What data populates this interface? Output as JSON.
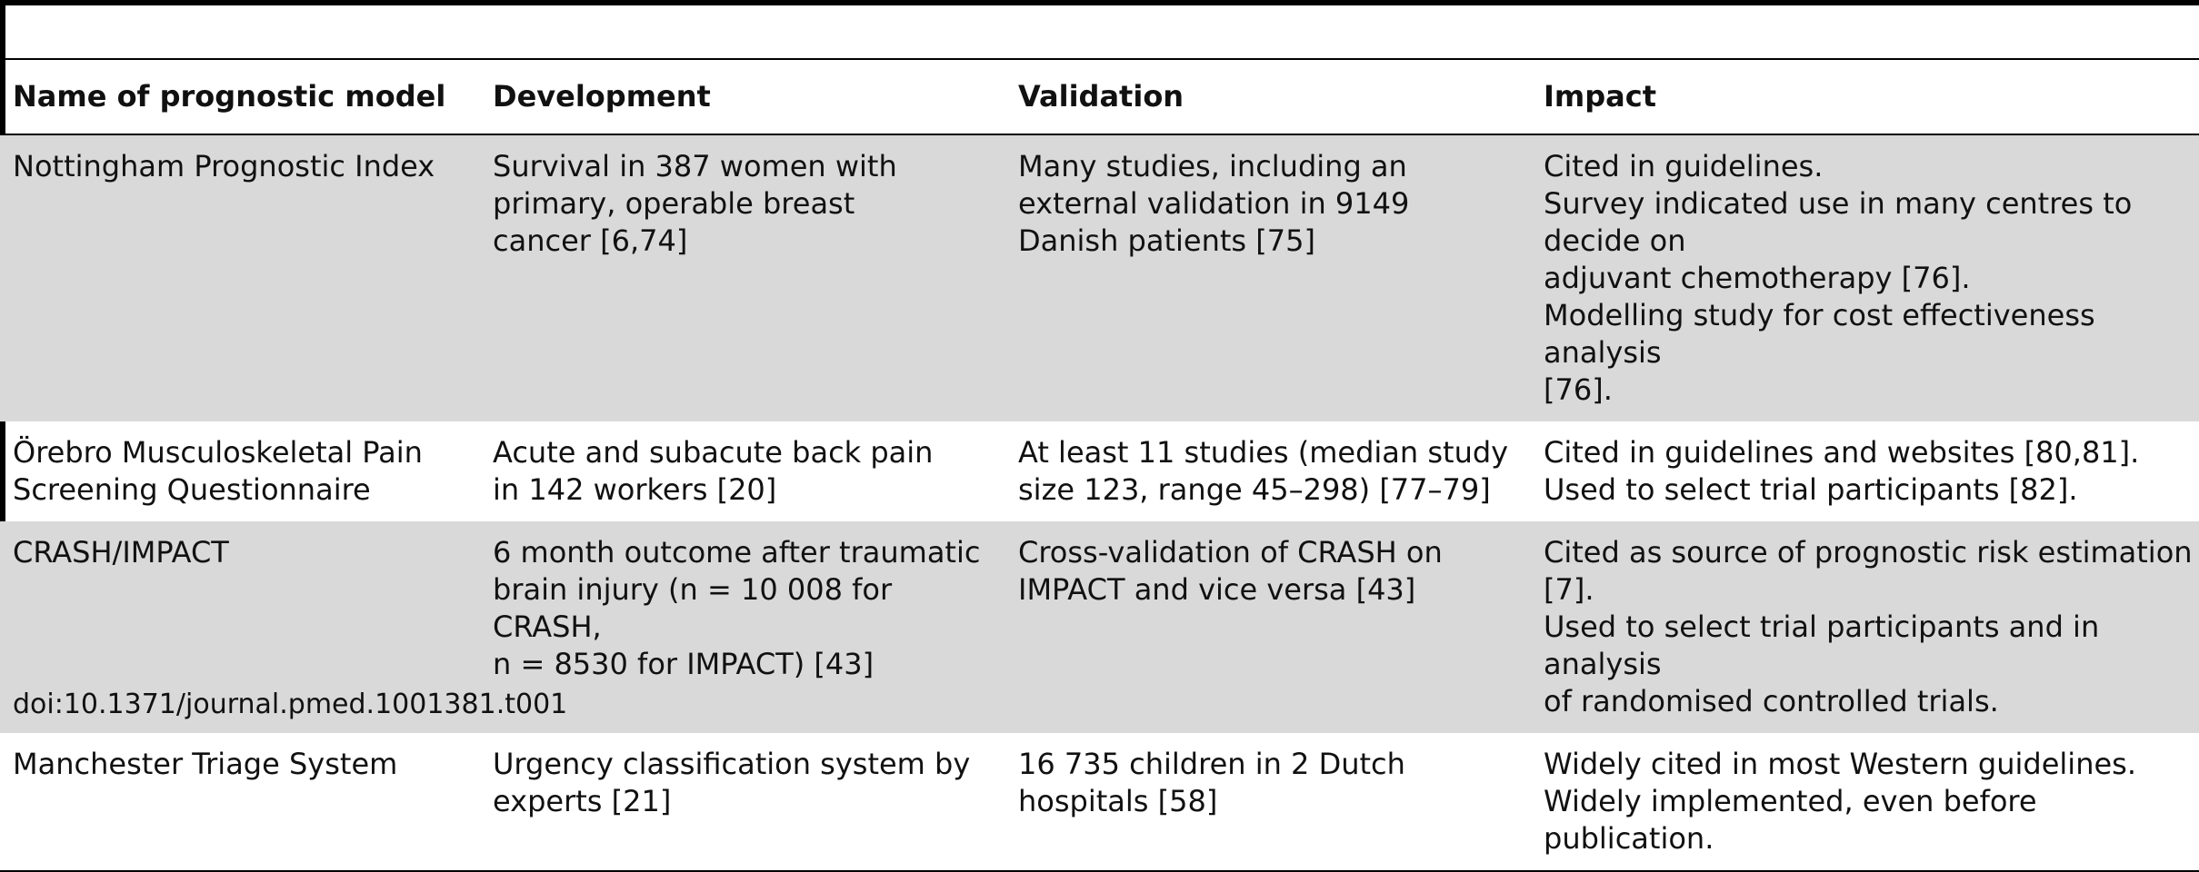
{
  "table": {
    "headers": [
      "Name of prognostic model",
      "Development",
      "Validation",
      "Impact"
    ],
    "rows": [
      {
        "shaded": true,
        "name": [
          "Nottingham Prognostic Index"
        ],
        "development": [
          "Survival in 387 women with",
          "primary, operable breast",
          "cancer [6,74]"
        ],
        "validation": [
          "Many studies, including an",
          "external validation in 9149",
          "Danish patients [75]"
        ],
        "impact": [
          "Cited in guidelines.",
          "Survey indicated use in many centres to decide on",
          "adjuvant chemotherapy [76].",
          "Modelling study for cost effectiveness analysis",
          "[76]."
        ]
      },
      {
        "shaded": false,
        "name": [
          "Örebro Musculoskeletal Pain",
          "Screening Questionnaire"
        ],
        "development": [
          "Acute and subacute back pain",
          "in 142 workers [20]"
        ],
        "validation": [
          "At least 11 studies (median study",
          "size 123, range 45–298) [77–79]"
        ],
        "impact": [
          "Cited in guidelines and websites [80,81].",
          "Used to select trial participants [82]."
        ]
      },
      {
        "shaded": true,
        "name": [
          "CRASH/IMPACT"
        ],
        "development": [
          "6 month outcome after traumatic",
          "brain injury (n = 10 008 for CRASH,",
          "n = 8530 for IMPACT) [43]"
        ],
        "validation": [
          "Cross-validation of CRASH on",
          "IMPACT and vice versa [43]"
        ],
        "impact": [
          "Cited as source of prognostic risk estimation [7].",
          "Used to select trial participants and in analysis",
          "of randomised controlled trials."
        ]
      },
      {
        "shaded": false,
        "name": [
          "Manchester Triage System"
        ],
        "development": [
          "Urgency classification system by",
          "experts [21]"
        ],
        "validation": [
          "16 735 children in 2 Dutch",
          "hospitals [58]"
        ],
        "impact": [
          "Widely cited in most Western guidelines.",
          "Widely implemented, even before publication."
        ]
      }
    ]
  },
  "doi": "doi:10.1371/journal.pmed.1001381.t001"
}
